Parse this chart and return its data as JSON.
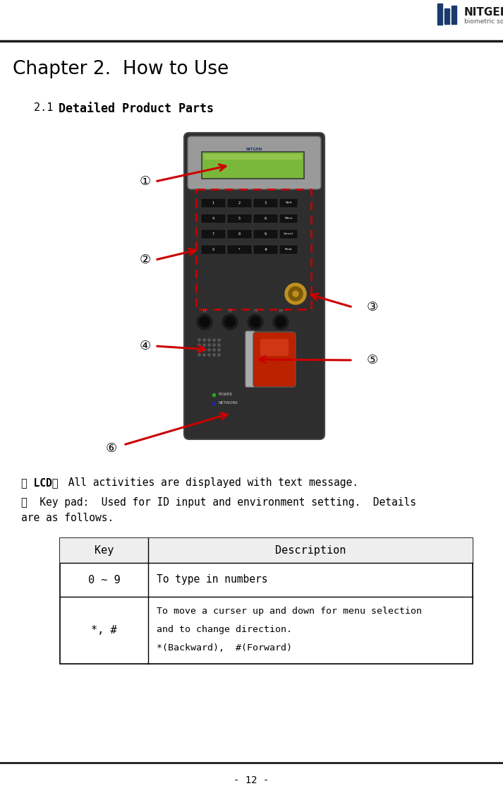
{
  "page_number": "- 12 -",
  "chapter_title": "Chapter 2.  How to Use",
  "section_prefix": "2.1 ",
  "section_main": "Detailed Product Parts",
  "desc1_prefix": "① LCD：",
  "desc1_rest": " All activities are displayed with text message.",
  "desc2_line1": "②  Key pad:  Used for ID input and environment setting.  Details",
  "desc2_line2": "are as follows.",
  "table_headers": [
    "Key",
    "Description"
  ],
  "table_row1_key": "0 ~ 9",
  "table_row1_desc": "To type in numbers",
  "table_row2_key": "*, #",
  "table_row2_desc_line1": "To move a curser up and down for menu selection",
  "table_row2_desc_line2": "and to change direction.",
  "table_row2_desc_line3": "*(Backward),  #(Forward)",
  "labels": [
    "①",
    "②",
    "③",
    "④",
    "⑤",
    "⑥"
  ],
  "bg_color": "#ffffff",
  "text_color": "#000000",
  "arrow_color": "#cc0000",
  "device_color": "#2e2e2e",
  "device_top_color": "#9a9a9a",
  "lcd_color": "#7ab83a",
  "keypad_border_color": "#cc0000",
  "jog_color": "#b87c10",
  "fp_color": "#bb2200",
  "fp_strip_color": "#aaaaaa"
}
